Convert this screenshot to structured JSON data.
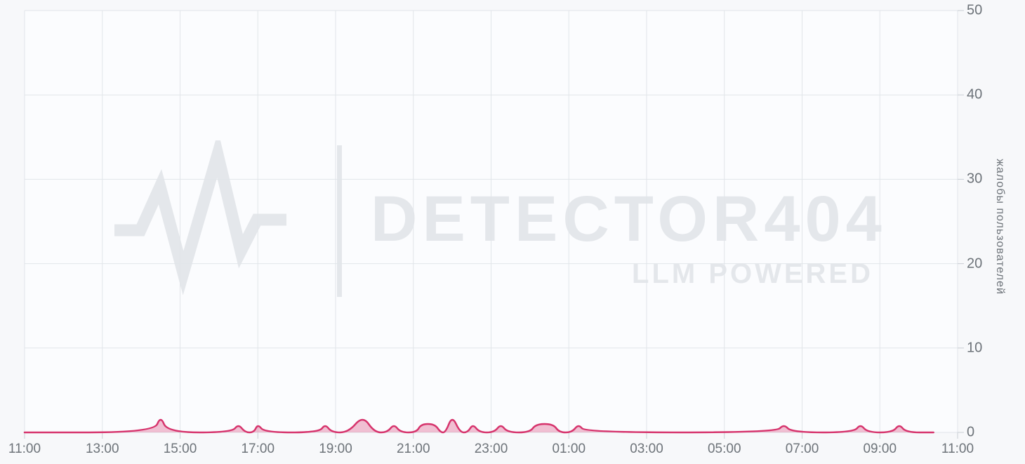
{
  "watermark": {
    "brand": "DETECTOR404",
    "tagline": "LLM POWERED",
    "icon": "pulse-line-icon"
  },
  "colors": {
    "accent": "#d6336c",
    "accent_fill": "rgba(214,51,108,0.30)",
    "grid": "#e1e5e9",
    "tick": "#c9ced4",
    "label": "#6d7379",
    "background": "#f7f8fa",
    "plot_background": "#fbfcfe",
    "watermark": "#e4e7eb"
  },
  "chart_data": {
    "type": "area",
    "title": "",
    "xlabel": "",
    "ylabel": "жалобы пользователей",
    "x_ticks": [
      "11:00",
      "13:00",
      "15:00",
      "17:00",
      "19:00",
      "21:00",
      "23:00",
      "01:00",
      "03:00",
      "05:00",
      "07:00",
      "09:00",
      "11:00"
    ],
    "x_span_hours": 24,
    "y_ticks": [
      "0",
      "10",
      "20",
      "30",
      "40",
      "50"
    ],
    "ylim": [
      0,
      50
    ],
    "grid": true,
    "legend_position": "none",
    "series": [
      {
        "name": "жалобы пользователей",
        "line_color": "#d6336c",
        "fill_color": "rgba(214,51,108,0.30)",
        "points_format": [
          "hours_from_start",
          "value",
          "time"
        ],
        "points": [
          [
            0.0,
            0,
            "11:00"
          ],
          [
            3.33,
            0,
            "14:20"
          ],
          [
            3.5,
            2,
            "14:30"
          ],
          [
            3.67,
            0,
            "14:40"
          ],
          [
            5.33,
            0,
            "16:20"
          ],
          [
            5.5,
            1,
            "16:30"
          ],
          [
            5.67,
            0,
            "16:40"
          ],
          [
            5.9,
            0,
            "16:54"
          ],
          [
            6.0,
            1,
            "17:00"
          ],
          [
            6.17,
            0,
            "17:10"
          ],
          [
            7.58,
            0,
            "18:35"
          ],
          [
            7.73,
            1,
            "18:44"
          ],
          [
            7.9,
            0,
            "18:54"
          ],
          [
            8.33,
            0,
            "19:20"
          ],
          [
            8.7,
            2,
            "19:42"
          ],
          [
            9.0,
            0,
            "20:00"
          ],
          [
            9.33,
            0,
            "20:20"
          ],
          [
            9.5,
            1,
            "20:30"
          ],
          [
            9.67,
            0,
            "20:40"
          ],
          [
            10.08,
            0,
            "21:05"
          ],
          [
            10.2,
            1,
            "21:12"
          ],
          [
            10.55,
            1,
            "21:33"
          ],
          [
            10.7,
            0,
            "21:42"
          ],
          [
            10.83,
            0,
            "21:50"
          ],
          [
            11.0,
            2,
            "22:00"
          ],
          [
            11.2,
            0,
            "22:12"
          ],
          [
            11.4,
            0,
            "22:24"
          ],
          [
            11.53,
            1,
            "22:32"
          ],
          [
            11.7,
            0,
            "22:42"
          ],
          [
            12.08,
            0,
            "23:05"
          ],
          [
            12.25,
            1,
            "23:15"
          ],
          [
            12.42,
            0,
            "23:25"
          ],
          [
            13.0,
            0,
            "00:00"
          ],
          [
            13.15,
            1,
            "00:09"
          ],
          [
            13.6,
            1,
            "00:36"
          ],
          [
            13.75,
            0,
            "00:45"
          ],
          [
            14.08,
            0,
            "01:05"
          ],
          [
            14.25,
            1,
            "01:15"
          ],
          [
            14.42,
            0,
            "01:25"
          ],
          [
            19.33,
            0,
            "06:20"
          ],
          [
            19.53,
            1,
            "06:32"
          ],
          [
            19.73,
            0,
            "06:44"
          ],
          [
            21.33,
            0,
            "08:20"
          ],
          [
            21.5,
            1,
            "08:30"
          ],
          [
            21.68,
            0,
            "08:41"
          ],
          [
            22.33,
            0,
            "09:20"
          ],
          [
            22.5,
            1,
            "09:30"
          ],
          [
            22.67,
            0,
            "09:40"
          ],
          [
            23.38,
            0,
            "10:23"
          ]
        ]
      }
    ]
  }
}
